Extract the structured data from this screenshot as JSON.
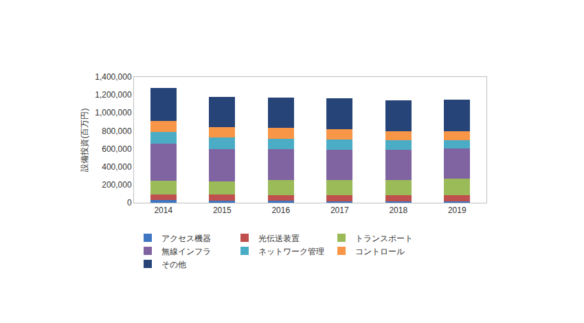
{
  "chart_data": {
    "type": "bar",
    "stacked": true,
    "grid": false,
    "legend": "bottom",
    "y_label": "設備投資(百万円)",
    "categories": [
      "2014",
      "2015",
      "2016",
      "2017",
      "2018",
      "2019"
    ],
    "ylim": [
      0,
      1400000
    ],
    "yticks": [
      0,
      {
        "value": 200000,
        "label": "200,000"
      },
      {
        "value": 400000,
        "label": "400,000"
      },
      {
        "value": 600000,
        "label": "600,000"
      },
      {
        "value": 800000,
        "label": "800,000"
      },
      {
        "value": 1000000,
        "label": "1,000,000"
      },
      {
        "value": 1200000,
        "label": "1,200,000"
      },
      {
        "value": 1400000,
        "label": "1,400,000"
      }
    ],
    "series": [
      {
        "name": "アクセス機器",
        "color": "#3f76c1",
        "values": [
          30000,
          25000,
          20000,
          18000,
          15000,
          15000
        ]
      },
      {
        "name": "光伝送装置",
        "color": "#c0504d",
        "values": [
          65000,
          65000,
          65000,
          67000,
          70000,
          70000
        ]
      },
      {
        "name": "トランスポート",
        "color": "#9bbb59",
        "values": [
          150000,
          150000,
          170000,
          170000,
          170000,
          180000
        ]
      },
      {
        "name": "無線インフラ",
        "color": "#8064a2",
        "values": [
          410000,
          360000,
          345000,
          335000,
          335000,
          340000
        ]
      },
      {
        "name": "ネットワーク管理",
        "color": "#4bacc6",
        "values": [
          130000,
          125000,
          115000,
          115000,
          105000,
          95000
        ]
      },
      {
        "name": "コントロール",
        "color": "#f79646",
        "values": [
          125000,
          120000,
          120000,
          110000,
          100000,
          95000
        ]
      },
      {
        "name": "その他",
        "color": "#264478",
        "values": [
          365000,
          335000,
          335000,
          345000,
          345000,
          350000
        ]
      }
    ]
  }
}
